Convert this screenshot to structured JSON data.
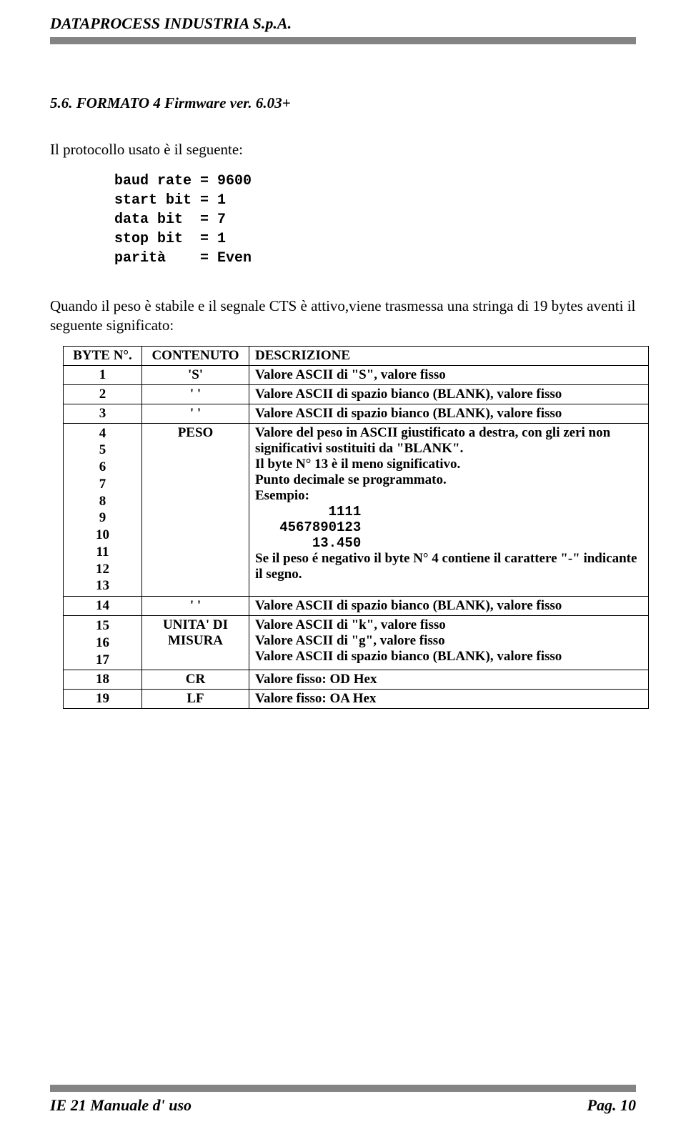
{
  "header": {
    "company": "DATAPROCESS INDUSTRIA S.p.A."
  },
  "section": {
    "heading": "5.6.    FORMATO 4  Firmware ver. 6.03+"
  },
  "intro": "Il protocollo usato è il seguente:",
  "params": "baud rate = 9600\nstart bit = 1\ndata bit  = 7\nstop bit  = 1\nparità    = Even",
  "body": "Quando il peso è stabile e il segnale CTS è attivo,viene trasmessa una stringa di 19 bytes aventi il seguente significato:",
  "table": {
    "headers": {
      "byte": "BYTE N°.",
      "cont": "CONTENUTO",
      "desc": "DESCRIZIONE"
    },
    "rows": {
      "r1": {
        "byte": "1",
        "cont": "'S'",
        "desc": "Valore ASCII di \"S\", valore fisso"
      },
      "r2": {
        "byte": "2",
        "cont": "'   '",
        "desc": "Valore ASCII di spazio bianco (BLANK), valore fisso"
      },
      "r3": {
        "byte": "3",
        "cont": "'   '",
        "desc": "Valore ASCII di spazio bianco (BLANK), valore fisso"
      },
      "r4": {
        "byte": "4\n5\n6\n7\n8\n9\n10\n11\n12\n13",
        "cont": "PESO",
        "desc_a": "Valore del peso in ASCII giustificato a destra, con gli zeri non significativi sostituiti da \"BLANK\".",
        "desc_b": "Il byte N° 13 è il meno significativo.",
        "desc_c": "Punto decimale se programmato.",
        "desc_d": "Esempio:",
        "mono1": "         1111",
        "mono2": "   4567890123",
        "mono3": "       13.450",
        "desc_e": "Se il peso é negativo il byte N° 4 contiene il carattere \"-\" indicante il segno."
      },
      "r14": {
        "byte": "14",
        "cont": "'   '",
        "desc": "Valore ASCII di spazio bianco (BLANK), valore fisso"
      },
      "r15": {
        "byte": "15\n16\n17",
        "cont": "UNITA' DI MISURA",
        "d1": "Valore ASCII di \"k\", valore fisso",
        "d2": "Valore ASCII di \"g\", valore fisso",
        "d3": "Valore ASCII di spazio bianco (BLANK), valore fisso"
      },
      "r18": {
        "byte": "18",
        "cont": "CR",
        "desc": "Valore fisso: OD Hex"
      },
      "r19": {
        "byte": "19",
        "cont": "LF",
        "desc": "Valore fisso: OA Hex"
      }
    }
  },
  "footer": {
    "left": "IE 21   Manuale d' uso",
    "right": "Pag. 10"
  },
  "colors": {
    "rule": "#848484",
    "text": "#000000",
    "bg": "#ffffff"
  }
}
